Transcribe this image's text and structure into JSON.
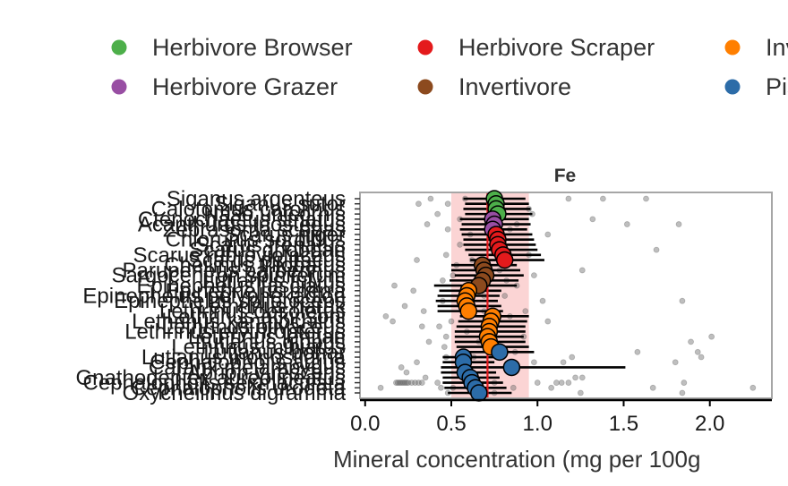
{
  "chart_data": {
    "type": "scatter",
    "panel_title": "Fe",
    "xlabel": "Mineral concentration (mg per 100g",
    "ylabel": "",
    "xlim": [
      -0.03,
      2.36
    ],
    "x_ticks": [
      "0.0",
      "0.5",
      "1.0",
      "1.5",
      "2.0"
    ],
    "x_tick_values": [
      0.0,
      0.5,
      1.0,
      1.5,
      2.0
    ],
    "reference_line": 0.71,
    "reference_band": [
      0.5,
      0.95
    ],
    "legend": {
      "placement": "top",
      "entries": [
        {
          "name": "Herbivore Browser",
          "color": "#4daf4a"
        },
        {
          "name": "Herbivore Scraper",
          "color": "#e41a1c"
        },
        {
          "name": "Invertivore Micro",
          "color": "#ff7f00"
        },
        {
          "name": "Herbivore Grazer",
          "color": "#984ea3"
        },
        {
          "name": "Invertivore",
          "color": "#8c4a1e"
        },
        {
          "name": "Piscivore",
          "color": "#2c6ca8"
        }
      ]
    },
    "species": [
      {
        "name": "Siganus argenteus",
        "group": "Herbivore Browser",
        "mean": 0.75,
        "lo": 0.57,
        "hi": 0.93
      },
      {
        "name": "Siganus sutor",
        "group": "Herbivore Browser",
        "mean": 0.76,
        "lo": 0.58,
        "hi": 0.95
      },
      {
        "name": "Calotomus carolinus",
        "group": "Herbivore Browser",
        "mean": 0.76,
        "lo": 0.57,
        "hi": 0.96
      },
      {
        "name": "Naso unicornis",
        "group": "Herbivore Browser",
        "mean": 0.77,
        "lo": 0.58,
        "hi": 0.97
      },
      {
        "name": "Ctenochaetus striatus",
        "group": "Herbivore Grazer",
        "mean": 0.74,
        "lo": 0.55,
        "hi": 0.95
      },
      {
        "name": "Acanthurus triostegus",
        "group": "Herbivore Grazer",
        "mean": 0.75,
        "lo": 0.56,
        "hi": 0.96
      },
      {
        "name": "Zebrasoma scopas",
        "group": "Herbivore Grazer",
        "mean": 0.74,
        "lo": 0.55,
        "hi": 0.94
      },
      {
        "name": "Scarus niger",
        "group": "Herbivore Scraper",
        "mean": 0.76,
        "lo": 0.56,
        "hi": 0.97
      },
      {
        "name": "Chlorurus sordidus",
        "group": "Herbivore Scraper",
        "mean": 0.77,
        "lo": 0.57,
        "hi": 0.98
      },
      {
        "name": "Scarus frenatus",
        "group": "Herbivore Scraper",
        "mean": 0.77,
        "lo": 0.57,
        "hi": 0.99
      },
      {
        "name": "Scarus ghobban",
        "group": "Herbivore Scraper",
        "mean": 0.78,
        "lo": 0.58,
        "hi": 1.0
      },
      {
        "name": "Scarus rubroviolaceus",
        "group": "Herbivore Scraper",
        "mean": 0.8,
        "lo": 0.6,
        "hi": 1.02
      },
      {
        "name": "Scarus psittacus",
        "group": "Herbivore Scraper",
        "mean": 0.81,
        "lo": 0.61,
        "hi": 1.04
      },
      {
        "name": "Cheilinus trilobatus",
        "group": "Invertivore",
        "mean": 0.68,
        "lo": 0.5,
        "hi": 0.88
      },
      {
        "name": "Parupeneus barberinus",
        "group": "Invertivore",
        "mean": 0.69,
        "lo": 0.5,
        "hi": 0.9
      },
      {
        "name": "Sargocentron spiniferum",
        "group": "Invertivore",
        "mean": 0.7,
        "lo": 0.52,
        "hi": 0.92
      },
      {
        "name": "Lutjanus fulvus",
        "group": "Invertivore",
        "mean": 0.68,
        "lo": 0.49,
        "hi": 0.89
      },
      {
        "name": "Epinephelus fasciatus",
        "group": "Invertivore",
        "mean": 0.66,
        "lo": 0.4,
        "hi": 0.88
      },
      {
        "name": "Epinephelus merra",
        "group": "Invertivore Micro",
        "mean": 0.6,
        "lo": 0.43,
        "hi": 0.79
      },
      {
        "name": "Epinephelus polyphekadion",
        "group": "Invertivore Micro",
        "mean": 0.59,
        "lo": 0.42,
        "hi": 0.78
      },
      {
        "name": "Epinephelus spilotoceps",
        "group": "Invertivore Micro",
        "mean": 0.58,
        "lo": 0.41,
        "hi": 0.77
      },
      {
        "name": "Lethrinus harak",
        "group": "Invertivore Micro",
        "mean": 0.59,
        "lo": 0.42,
        "hi": 0.79
      },
      {
        "name": "Lethrinus obsoletus",
        "group": "Invertivore Micro",
        "mean": 0.6,
        "lo": 0.42,
        "hi": 0.8
      },
      {
        "name": "Lethrinus atkinsoni",
        "group": "Invertivore Micro",
        "mean": 0.74,
        "lo": 0.55,
        "hi": 0.95
      },
      {
        "name": "Lethrinus xanthochilus",
        "group": "Invertivore Micro",
        "mean": 0.73,
        "lo": 0.54,
        "hi": 0.94
      },
      {
        "name": "Lethrinus olivaceus",
        "group": "Invertivore Micro",
        "mean": 0.72,
        "lo": 0.53,
        "hi": 0.93
      },
      {
        "name": "Lethrinus erythropterus",
        "group": "Invertivore Micro",
        "mean": 0.72,
        "lo": 0.52,
        "hi": 0.93
      },
      {
        "name": "Lethrinus lentjan",
        "group": "Invertivore Micro",
        "mean": 0.71,
        "lo": 0.52,
        "hi": 0.92
      },
      {
        "name": "Lutjanus gibbus",
        "group": "Invertivore Micro",
        "mean": 0.72,
        "lo": 0.52,
        "hi": 0.93
      },
      {
        "name": "Lethrinus miniatus",
        "group": "Invertivore Micro",
        "mean": 0.73,
        "lo": 0.53,
        "hi": 0.95
      },
      {
        "name": "Lutjanus bohar",
        "group": "Piscivore",
        "mean": 0.78,
        "lo": 0.58,
        "hi": 0.98
      },
      {
        "name": "Lutjanus monostigma",
        "group": "Piscivore",
        "mean": 0.57,
        "lo": 0.45,
        "hi": 0.75
      },
      {
        "name": "Cephalopholis argus",
        "group": "Piscivore",
        "mean": 0.57,
        "lo": 0.45,
        "hi": 0.75
      },
      {
        "name": "Caranx melampygus",
        "group": "Piscivore",
        "mean": 0.85,
        "lo": 0.44,
        "hi": 1.51
      },
      {
        "name": "Aprion virescens",
        "group": "Piscivore",
        "mean": 0.58,
        "lo": 0.44,
        "hi": 0.76
      },
      {
        "name": "Gnathodentex aureolineatus",
        "group": "Piscivore",
        "mean": 0.61,
        "lo": 0.45,
        "hi": 0.78
      },
      {
        "name": "Cephalopholis sexmaculata",
        "group": "Piscivore",
        "mean": 0.62,
        "lo": 0.45,
        "hi": 0.8
      },
      {
        "name": "Cephalopholis urodeta",
        "group": "Piscivore",
        "mean": 0.64,
        "lo": 0.46,
        "hi": 0.82
      },
      {
        "name": "Oxycheilinus digramma",
        "group": "Piscivore",
        "mean": 0.66,
        "lo": 0.48,
        "hi": 0.85
      }
    ],
    "raw_points": [
      [
        0.31,
        1
      ],
      [
        0.38,
        0
      ],
      [
        0.58,
        0
      ],
      [
        0.48,
        1
      ],
      [
        0.95,
        2
      ],
      [
        1.18,
        0
      ],
      [
        1.38,
        0
      ],
      [
        1.63,
        0
      ],
      [
        0.42,
        3
      ],
      [
        0.55,
        4
      ],
      [
        0.72,
        3
      ],
      [
        0.88,
        5
      ],
      [
        1.32,
        4
      ],
      [
        1.52,
        5
      ],
      [
        0.36,
        5
      ],
      [
        0.97,
        3
      ],
      [
        0.48,
        6
      ],
      [
        0.61,
        7
      ],
      [
        0.84,
        6
      ],
      [
        1.06,
        7
      ],
      [
        0.55,
        9
      ],
      [
        1.69,
        10
      ],
      [
        1.82,
        5
      ],
      [
        0.47,
        11
      ],
      [
        0.62,
        12
      ],
      [
        0.84,
        12
      ],
      [
        0.95,
        11
      ],
      [
        0.53,
        13
      ],
      [
        0.78,
        14
      ],
      [
        0.3,
        12
      ],
      [
        0.51,
        15
      ],
      [
        0.64,
        16
      ],
      [
        0.82,
        16
      ],
      [
        0.98,
        15
      ],
      [
        0.17,
        17
      ],
      [
        0.45,
        16
      ],
      [
        0.88,
        17
      ],
      [
        1.26,
        14
      ],
      [
        0.28,
        18
      ],
      [
        0.58,
        18
      ],
      [
        0.69,
        19
      ],
      [
        0.81,
        19
      ],
      [
        0.45,
        20
      ],
      [
        1.03,
        20
      ],
      [
        1.84,
        20
      ],
      [
        0.12,
        23
      ],
      [
        0.23,
        21
      ],
      [
        0.34,
        22
      ],
      [
        0.57,
        21
      ],
      [
        0.69,
        22
      ],
      [
        0.93,
        22
      ],
      [
        0.16,
        24
      ],
      [
        0.33,
        25
      ],
      [
        0.43,
        25
      ],
      [
        0.5,
        24
      ],
      [
        0.84,
        23
      ],
      [
        1.06,
        24
      ],
      [
        0.37,
        28
      ],
      [
        0.47,
        27
      ],
      [
        0.59,
        26
      ],
      [
        0.66,
        28
      ],
      [
        0.78,
        29
      ],
      [
        0.92,
        27
      ],
      [
        1.89,
        28
      ],
      [
        2.01,
        27
      ],
      [
        0.46,
        29
      ],
      [
        0.21,
        33
      ],
      [
        0.3,
        32
      ],
      [
        0.47,
        31
      ],
      [
        0.63,
        31
      ],
      [
        0.72,
        30
      ],
      [
        0.87,
        30
      ],
      [
        0.98,
        32
      ],
      [
        1.15,
        32
      ],
      [
        1.2,
        31
      ],
      [
        1.58,
        30
      ],
      [
        1.8,
        32
      ],
      [
        1.93,
        30
      ],
      [
        1.95,
        31
      ],
      [
        0.24,
        34
      ],
      [
        0.18,
        36
      ],
      [
        0.19,
        36
      ],
      [
        0.2,
        36
      ],
      [
        0.21,
        36
      ],
      [
        0.22,
        36
      ],
      [
        0.23,
        36
      ],
      [
        0.24,
        36
      ],
      [
        0.25,
        36
      ],
      [
        0.27,
        36
      ],
      [
        0.29,
        36
      ],
      [
        0.31,
        36
      ],
      [
        0.33,
        36
      ],
      [
        0.35,
        35
      ],
      [
        0.42,
        36
      ],
      [
        0.51,
        37
      ],
      [
        0.62,
        36
      ],
      [
        0.75,
        36
      ],
      [
        0.86,
        37
      ],
      [
        1.0,
        36
      ],
      [
        1.08,
        37
      ],
      [
        1.11,
        36
      ],
      [
        1.14,
        36
      ],
      [
        1.18,
        36
      ],
      [
        1.22,
        35
      ],
      [
        1.26,
        35
      ],
      [
        1.67,
        37
      ],
      [
        1.85,
        36
      ],
      [
        2.25,
        37
      ],
      [
        0.09,
        37
      ],
      [
        0.48,
        38
      ],
      [
        0.62,
        38
      ],
      [
        1.25,
        38
      ],
      [
        1.84,
        38
      ],
      [
        0.44,
        37
      ],
      [
        0.75,
        38
      ]
    ]
  }
}
